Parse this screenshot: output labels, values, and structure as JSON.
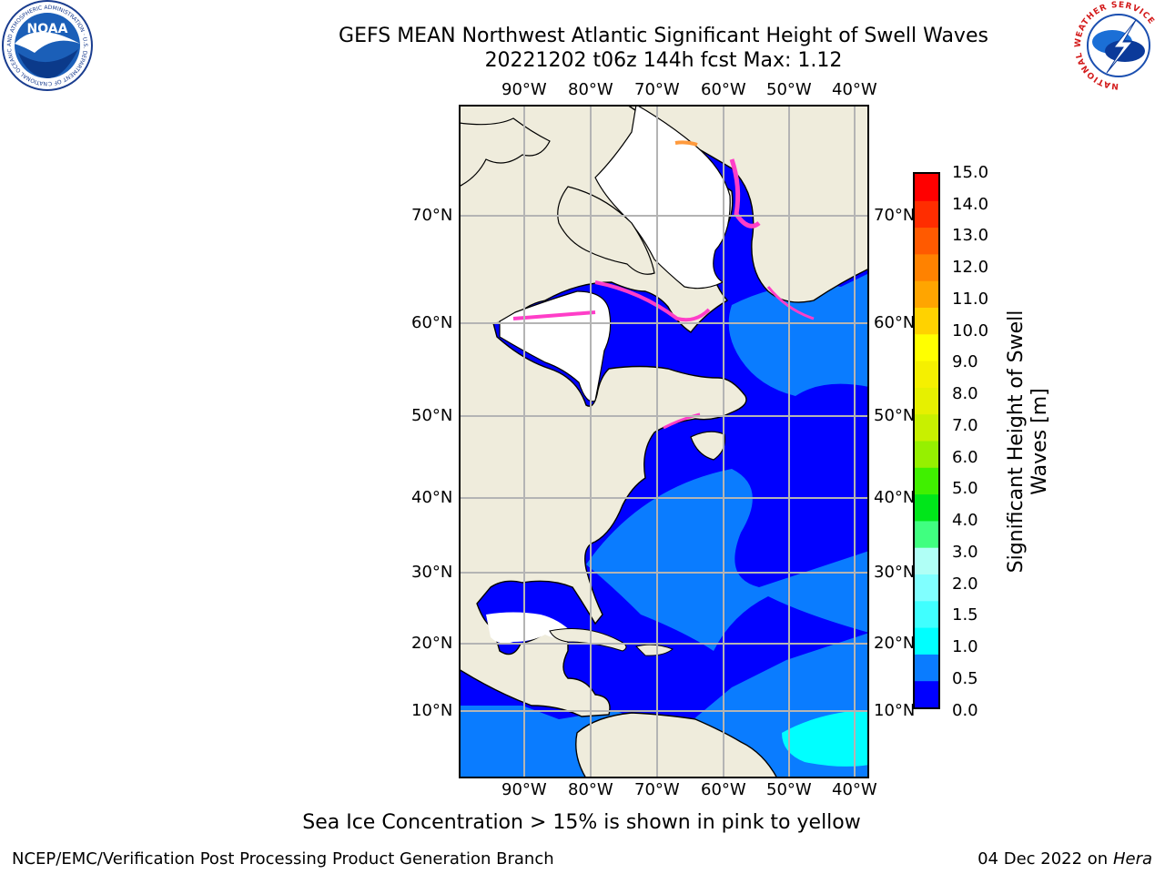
{
  "header": {
    "title_line1": "GEFS MEAN Northwest Atlantic Significant Height of Swell Waves",
    "title_line2": "20221202 t06z 144h fcst   Max: 1.12"
  },
  "logos": {
    "noaa_text": "NOAA",
    "noaa_ring_text": "NATIONAL OCEANIC AND ATMOSPHERIC ADMINISTRATION · U.S. DEPARTMENT OF COMMERCE",
    "nws_ring_text": "NATIONAL WEATHER SERVICE"
  },
  "map": {
    "lon_labels": [
      "90°W",
      "80°W",
      "70°W",
      "60°W",
      "50°W",
      "40°W"
    ],
    "lat_labels_left": [
      "70°N",
      "60°N",
      "50°N",
      "40°N",
      "30°N",
      "20°N",
      "10°N"
    ],
    "lat_labels_right": [
      "70°N",
      "60°N",
      "50°N",
      "40°N",
      "30°N",
      "20°N",
      "10°N"
    ],
    "colors": {
      "land": "#efecdc",
      "ice_missing": "#ffffff",
      "sea_low": "#0000ff",
      "sea_mid": "#0a7cff",
      "sea_high": "#00ffff",
      "grid": "#b4b4b4",
      "ice_pink": "#ff3ec8",
      "ice_orange": "#ff9a3c"
    }
  },
  "colorbar": {
    "labels": [
      "15.0",
      "14.0",
      "13.0",
      "12.0",
      "11.0",
      "10.0",
      "9.0",
      "8.0",
      "7.0",
      "6.0",
      "5.0",
      "4.0",
      "3.0",
      "2.0",
      "1.5",
      "1.0",
      "0.5",
      "0.0"
    ],
    "colors_bottom_to_top": [
      "#0000ff",
      "#0a7cff",
      "#00ffff",
      "#40ffff",
      "#80ffff",
      "#b0fff6",
      "#40ff80",
      "#00e61a",
      "#40f000",
      "#96f000",
      "#c8f000",
      "#e6f000",
      "#f5f000",
      "#ffff00",
      "#ffd200",
      "#ffa500",
      "#ff8200",
      "#ff5a00",
      "#ff2d00",
      "#ff0000"
    ],
    "title": "Significant Height of Swell Waves [m]"
  },
  "footer": {
    "note": "Sea Ice Concentration > 15% is shown in pink to yellow",
    "left": "NCEP/EMC/Verification Post Processing Product Generation Branch",
    "date": "04 Dec 2022 on",
    "machine": "Hera"
  }
}
